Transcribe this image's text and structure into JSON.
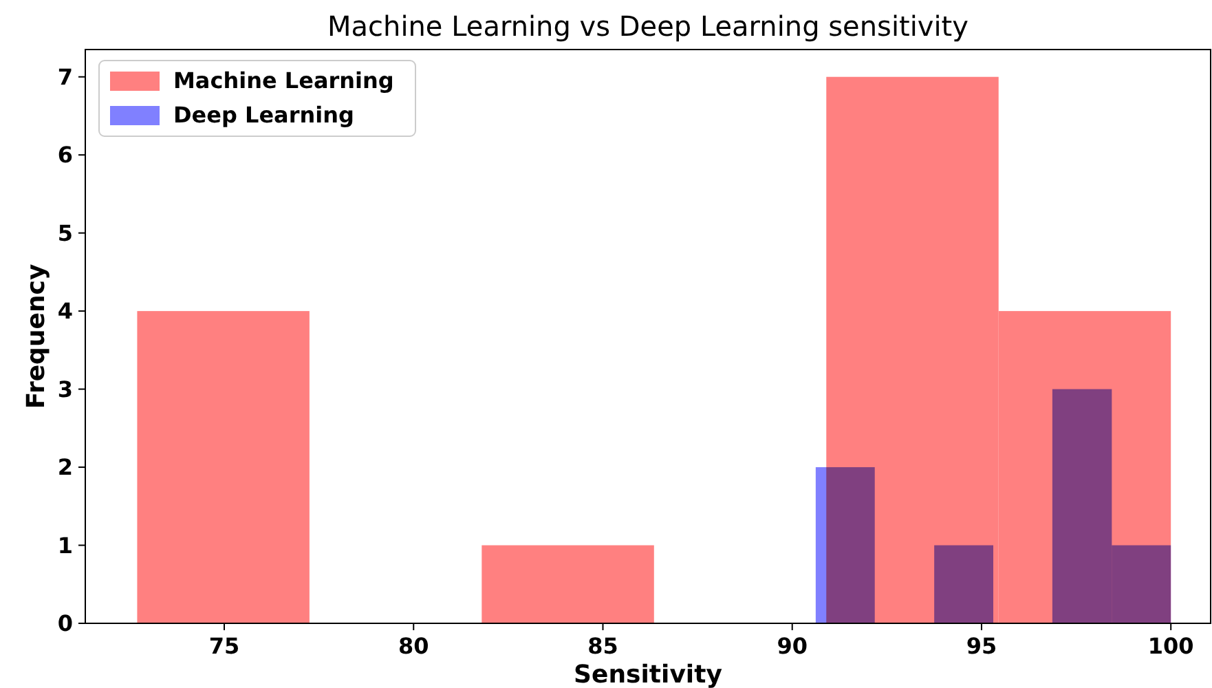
{
  "chart_data": {
    "type": "histogram",
    "title": "Machine Learning vs Deep Learning sensitivity",
    "xlabel": "Sensitivity",
    "ylabel": "Frequency",
    "bins": [
      72.7,
      77.25,
      81.8,
      86.35,
      90.9,
      95.45,
      100
    ],
    "series": [
      {
        "name": "Machine Learning",
        "color": "#ff8080",
        "values": [
          4,
          0,
          1,
          0,
          7,
          4
        ]
      },
      {
        "name": "Deep Learning",
        "color": "#8080ff",
        "bins": [
          90.62,
          92.18,
          93.75,
          95.31,
          96.87,
          98.44,
          100
        ],
        "values": [
          2,
          0,
          1,
          0,
          3,
          1
        ]
      }
    ],
    "xlim": [
      71.33,
      101.05
    ],
    "xticks": [
      75,
      80,
      85,
      90,
      95,
      100
    ],
    "ylim": [
      0,
      7.35
    ],
    "yticks": [
      0,
      1,
      2,
      3,
      4,
      5,
      6,
      7
    ],
    "legend": "top left"
  }
}
